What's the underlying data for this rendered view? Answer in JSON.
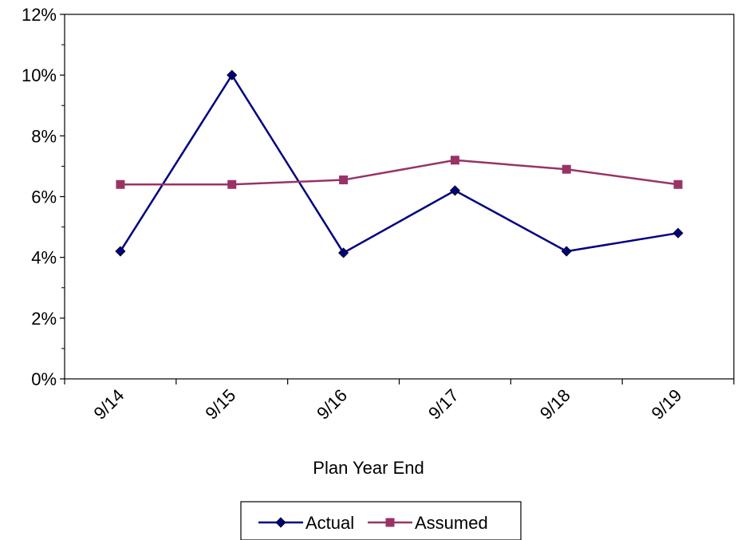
{
  "chart_data": {
    "type": "line",
    "categories": [
      "9/14",
      "9/15",
      "9/16",
      "9/17",
      "9/18",
      "9/19"
    ],
    "series": [
      {
        "name": "Actual",
        "values": [
          4.2,
          10.0,
          4.15,
          6.2,
          4.2,
          4.8
        ],
        "color": "#000080",
        "marker": "diamond"
      },
      {
        "name": "Assumed",
        "values": [
          6.4,
          6.4,
          6.55,
          7.2,
          6.9,
          6.4
        ],
        "color": "#993366",
        "marker": "square"
      }
    ],
    "title": "",
    "xlabel": "Plan Year End",
    "ylabel": "",
    "ylim": [
      0,
      12
    ],
    "ytick_step": 2,
    "ytick_format": "percent",
    "grid": false,
    "legend": "bottom-center"
  }
}
